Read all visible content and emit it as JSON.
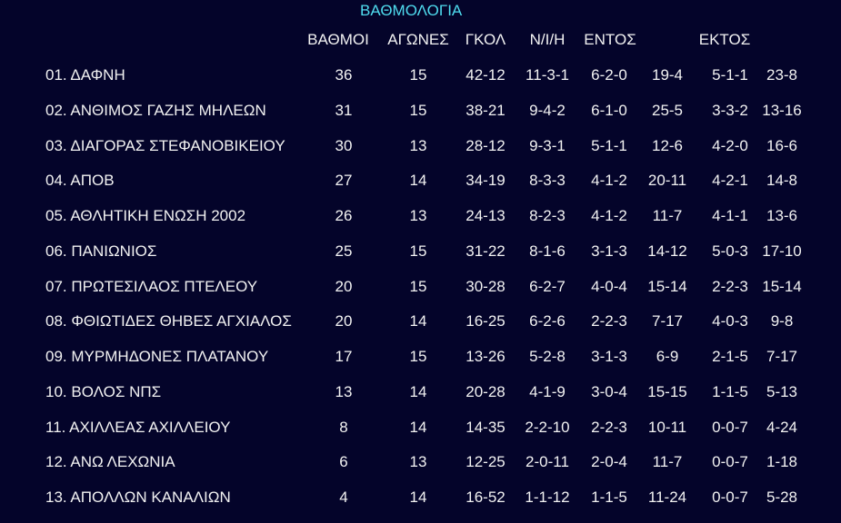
{
  "title": "ΒΑΘΜΟΛΟΓΙΑ",
  "colors": {
    "background": "#04042a",
    "title": "#4fdcef",
    "text": "#f2f2f2"
  },
  "headers": [
    "ΒΑΘΜΟΙ",
    "ΑΓΩΝΕΣ",
    "ΓΚΟΛ",
    "Ν/Ι/Η",
    "ΕΝΤΟΣ",
    "ΕΚΤΟΣ"
  ],
  "rows": [
    {
      "team": "01. ΔΑΦΝΗ",
      "points": "36",
      "games": "15",
      "goals": "42-12",
      "wdl": "11-3-1",
      "home_wdl": "6-2-0",
      "home_goals": "19-4",
      "away_wdl": "5-1-1",
      "away_goals": "23-8"
    },
    {
      "team": "02. ΑΝΘΙΜΟΣ ΓΑΖΗΣ ΜΗΛΕΩΝ",
      "points": "31",
      "games": "15",
      "goals": "38-21",
      "wdl": "9-4-2",
      "home_wdl": "6-1-0",
      "home_goals": "25-5",
      "away_wdl": "3-3-2",
      "away_goals": "13-16"
    },
    {
      "team": "03. ΔΙΑΓΟΡΑΣ ΣΤΕΦΑΝΟΒΙΚΕΙΟΥ",
      "points": "30",
      "games": "13",
      "goals": "28-12",
      "wdl": "9-3-1",
      "home_wdl": "5-1-1",
      "home_goals": "12-6",
      "away_wdl": "4-2-0",
      "away_goals": "16-6"
    },
    {
      "team": "04. ΑΠΟΒ",
      "points": "27",
      "games": "14",
      "goals": "34-19",
      "wdl": "8-3-3",
      "home_wdl": "4-1-2",
      "home_goals": "20-11",
      "away_wdl": "4-2-1",
      "away_goals": "14-8"
    },
    {
      "team": "05. ΑΘΛΗΤΙΚΗ ΕΝΩΣΗ 2002",
      "points": "26",
      "games": "13",
      "goals": "24-13",
      "wdl": "8-2-3",
      "home_wdl": "4-1-2",
      "home_goals": "11-7",
      "away_wdl": "4-1-1",
      "away_goals": "13-6"
    },
    {
      "team": "06. ΠΑΝΙΩΝΙΟΣ",
      "points": "25",
      "games": "15",
      "goals": "31-22",
      "wdl": "8-1-6",
      "home_wdl": "3-1-3",
      "home_goals": "14-12",
      "away_wdl": "5-0-3",
      "away_goals": "17-10"
    },
    {
      "team": "07. ΠΡΩΤΕΣΙΛΑΟΣ ΠΤΕΛΕΟΥ",
      "points": "20",
      "games": "15",
      "goals": "30-28",
      "wdl": "6-2-7",
      "home_wdl": "4-0-4",
      "home_goals": "15-14",
      "away_wdl": "2-2-3",
      "away_goals": "15-14"
    },
    {
      "team": "08. ΦΘΙΩΤΙΔΕΣ ΘΗΒΕΣ ΑΓΧΙΑΛΟΣ",
      "points": "20",
      "games": "14",
      "goals": "16-25",
      "wdl": "6-2-6",
      "home_wdl": "2-2-3",
      "home_goals": "7-17",
      "away_wdl": "4-0-3",
      "away_goals": "9-8"
    },
    {
      "team": "09. ΜΥΡΜΗΔΟΝΕΣ ΠΛΑΤΑΝΟΥ",
      "points": "17",
      "games": "15",
      "goals": "13-26",
      "wdl": "5-2-8",
      "home_wdl": "3-1-3",
      "home_goals": "6-9",
      "away_wdl": "2-1-5",
      "away_goals": "7-17"
    },
    {
      "team": "10. ΒΟΛΟΣ ΝΠΣ",
      "points": "13",
      "games": "14",
      "goals": "20-28",
      "wdl": "4-1-9",
      "home_wdl": "3-0-4",
      "home_goals": "15-15",
      "away_wdl": "1-1-5",
      "away_goals": "5-13"
    },
    {
      "team": "11. ΑΧΙΛΛΕΑΣ ΑΧΙΛΛΕΙΟΥ",
      "points": "8",
      "games": "14",
      "goals": "14-35",
      "wdl": "2-2-10",
      "home_wdl": "2-2-3",
      "home_goals": "10-11",
      "away_wdl": "0-0-7",
      "away_goals": "4-24"
    },
    {
      "team": "12. ΑΝΩ ΛΕΧΩΝΙΑ",
      "points": "6",
      "games": "13",
      "goals": "12-25",
      "wdl": "2-0-11",
      "home_wdl": "2-0-4",
      "home_goals": "11-7",
      "away_wdl": "0-0-7",
      "away_goals": "1-18"
    },
    {
      "team": "13. ΑΠΟΛΛΩΝ ΚΑΝΑΛΙΩΝ",
      "points": "4",
      "games": "14",
      "goals": "16-52",
      "wdl": "1-1-12",
      "home_wdl": "1-1-5",
      "home_goals": "11-24",
      "away_wdl": "0-0-7",
      "away_goals": "5-28"
    }
  ]
}
